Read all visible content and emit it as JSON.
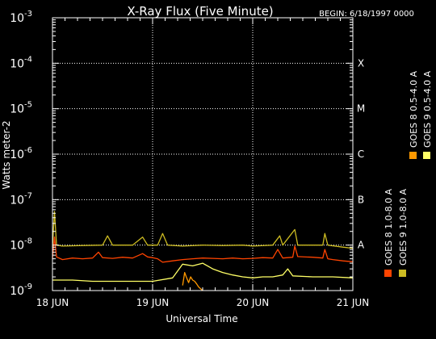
{
  "chart_data": {
    "type": "line",
    "title": "X-Ray Flux (Five Minute)",
    "begin_label": "BEGIN: 6/18/1997 0000",
    "xlabel": "Universal Time",
    "ylabel": "Watts meter-2",
    "x_ticks": [
      "18 JUN",
      "19 JUN",
      "20 JUN",
      "21 JUN"
    ],
    "x_range_days": [
      0,
      3
    ],
    "y_scale": "log",
    "y_ticks": [
      {
        "base": "10",
        "exp": "-9",
        "value": 1e-09
      },
      {
        "base": "10",
        "exp": "-8",
        "value": 1e-08
      },
      {
        "base": "10",
        "exp": "-7",
        "value": 1e-07
      },
      {
        "base": "10",
        "exp": "-6",
        "value": 1e-06
      },
      {
        "base": "10",
        "exp": "-5",
        "value": 1e-05
      },
      {
        "base": "10",
        "exp": "-4",
        "value": 0.0001
      },
      {
        "base": "10",
        "exp": "-3",
        "value": 0.001
      }
    ],
    "ylim": [
      1e-09,
      0.001
    ],
    "flare_classes": [
      {
        "label": "A",
        "value": 1e-08
      },
      {
        "label": "B",
        "value": 1e-07
      },
      {
        "label": "C",
        "value": 1e-06
      },
      {
        "label": "M",
        "value": 1e-05
      },
      {
        "label": "X",
        "value": 0.0001
      }
    ],
    "grid": "dotted at flare-class levels and day boundaries",
    "legend": [
      {
        "label": "GOES 8 1.0-8.0 A",
        "color": "#ff4400"
      },
      {
        "label": "GOES 8 0.5-4.0 A",
        "color": "#ff9900"
      },
      {
        "label": "GOES 9 1.0-8.0 A",
        "color": "#ccbb22"
      },
      {
        "label": "GOES 9 0.5-4.0 A",
        "color": "#ffff66"
      }
    ],
    "series": [
      {
        "name": "GOES 8 1.0-8.0 A",
        "color": "#ff4400",
        "points": [
          [
            0.0,
            5e-09
          ],
          [
            0.02,
            1.5e-08
          ],
          [
            0.04,
            5.5e-09
          ],
          [
            0.1,
            4.8e-09
          ],
          [
            0.2,
            5.2e-09
          ],
          [
            0.3,
            5e-09
          ],
          [
            0.4,
            5.2e-09
          ],
          [
            0.46,
            7e-09
          ],
          [
            0.5,
            5.3e-09
          ],
          [
            0.6,
            5.1e-09
          ],
          [
            0.7,
            5.4e-09
          ],
          [
            0.8,
            5.2e-09
          ],
          [
            0.9,
            6.5e-09
          ],
          [
            0.95,
            5.5e-09
          ],
          [
            1.0,
            5.3e-09
          ],
          [
            1.05,
            5e-09
          ],
          [
            1.1,
            4.2e-09
          ],
          [
            1.2,
            4.5e-09
          ],
          [
            1.3,
            4.8e-09
          ],
          [
            1.4,
            5e-09
          ],
          [
            1.5,
            5.2e-09
          ],
          [
            1.6,
            5.1e-09
          ],
          [
            1.7,
            5e-09
          ],
          [
            1.8,
            5.2e-09
          ],
          [
            1.9,
            5e-09
          ],
          [
            2.0,
            5.1e-09
          ],
          [
            2.1,
            5.3e-09
          ],
          [
            2.2,
            5.2e-09
          ],
          [
            2.25,
            8e-09
          ],
          [
            2.3,
            5.2e-09
          ],
          [
            2.4,
            5.4e-09
          ],
          [
            2.42,
            9.5e-09
          ],
          [
            2.45,
            5.6e-09
          ],
          [
            2.6,
            5.4e-09
          ],
          [
            2.7,
            5.2e-09
          ],
          [
            2.72,
            8e-09
          ],
          [
            2.75,
            5e-09
          ],
          [
            2.8,
            4.8e-09
          ],
          [
            2.9,
            4.5e-09
          ],
          [
            3.0,
            4.3e-09
          ]
        ]
      },
      {
        "name": "GOES 8 0.5-4.0 A",
        "color": "#ff9900",
        "points": [
          [
            1.3,
            1.3e-09
          ],
          [
            1.32,
            2.5e-09
          ],
          [
            1.34,
            1.9e-09
          ],
          [
            1.36,
            1.5e-09
          ],
          [
            1.38,
            2e-09
          ],
          [
            1.4,
            1.7e-09
          ],
          [
            1.42,
            1.6e-09
          ],
          [
            1.44,
            1.4e-09
          ],
          [
            1.46,
            1.2e-09
          ],
          [
            1.48,
            1.1e-09
          ],
          [
            1.5,
            1e-09
          ]
        ]
      },
      {
        "name": "GOES 9 1.0-8.0 A",
        "color": "#ccbb22",
        "points": [
          [
            0.0,
            9e-09
          ],
          [
            0.02,
            5.5e-08
          ],
          [
            0.04,
            1e-08
          ],
          [
            0.1,
            9.5e-09
          ],
          [
            0.3,
            9.8e-09
          ],
          [
            0.5,
            1e-08
          ],
          [
            0.55,
            1.6e-08
          ],
          [
            0.6,
            1e-08
          ],
          [
            0.8,
            1e-08
          ],
          [
            0.9,
            1.5e-08
          ],
          [
            0.95,
            1e-08
          ],
          [
            1.05,
            1e-08
          ],
          [
            1.1,
            1.8e-08
          ],
          [
            1.15,
            1e-08
          ],
          [
            1.3,
            9.5e-09
          ],
          [
            1.5,
            1e-08
          ],
          [
            1.7,
            9.8e-09
          ],
          [
            1.9,
            1e-08
          ],
          [
            2.0,
            9.5e-09
          ],
          [
            2.2,
            1e-08
          ],
          [
            2.27,
            1.6e-08
          ],
          [
            2.3,
            1e-08
          ],
          [
            2.42,
            2.2e-08
          ],
          [
            2.45,
            1e-08
          ],
          [
            2.6,
            1e-08
          ],
          [
            2.7,
            1e-08
          ],
          [
            2.72,
            1.8e-08
          ],
          [
            2.75,
            1e-08
          ],
          [
            2.9,
            9e-09
          ],
          [
            3.0,
            8.5e-09
          ]
        ]
      },
      {
        "name": "GOES 9 0.5-4.0 A",
        "color": "#ffff66",
        "points": [
          [
            0.0,
            1.7e-09
          ],
          [
            0.2,
            1.7e-09
          ],
          [
            0.4,
            1.6e-09
          ],
          [
            0.6,
            1.6e-09
          ],
          [
            0.8,
            1.6e-09
          ],
          [
            1.0,
            1.6e-09
          ],
          [
            1.2,
            1.9e-09
          ],
          [
            1.3,
            3.8e-09
          ],
          [
            1.4,
            3.5e-09
          ],
          [
            1.5,
            4e-09
          ],
          [
            1.6,
            3e-09
          ],
          [
            1.7,
            2.5e-09
          ],
          [
            1.8,
            2.2e-09
          ],
          [
            1.9,
            2e-09
          ],
          [
            2.0,
            1.9e-09
          ],
          [
            2.1,
            2e-09
          ],
          [
            2.2,
            2e-09
          ],
          [
            2.3,
            2.2e-09
          ],
          [
            2.35,
            3e-09
          ],
          [
            2.4,
            2.1e-09
          ],
          [
            2.6,
            2e-09
          ],
          [
            2.8,
            2e-09
          ],
          [
            3.0,
            1.9e-09
          ]
        ]
      }
    ]
  }
}
